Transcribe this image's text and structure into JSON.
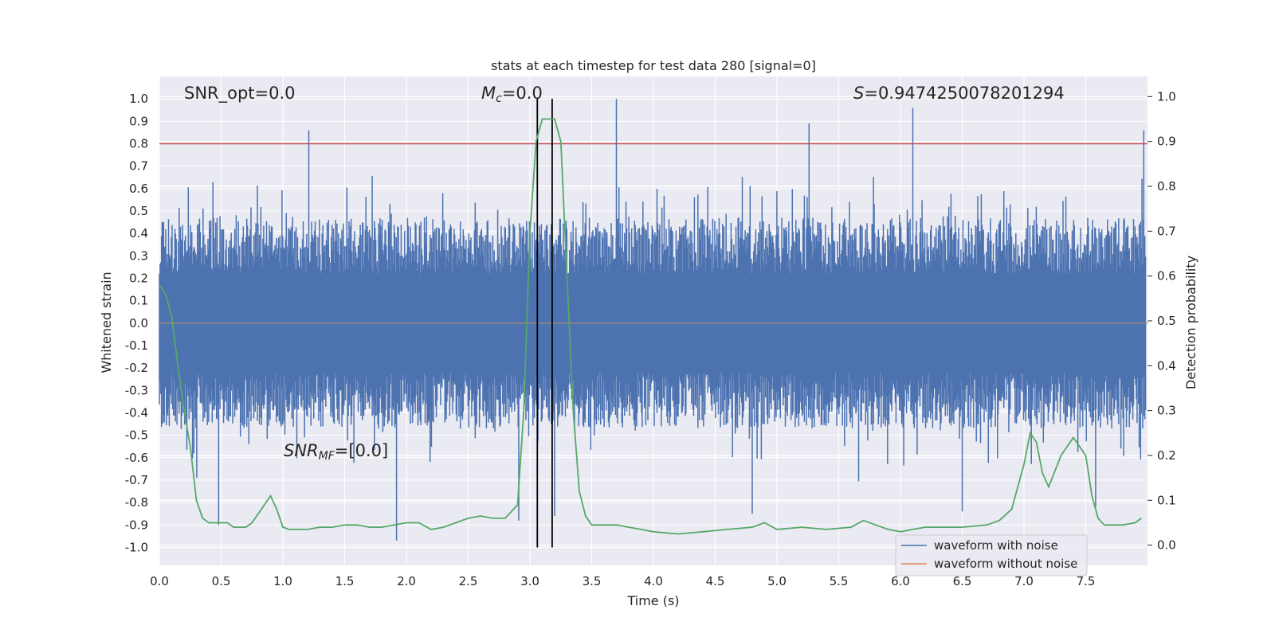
{
  "chart_data": {
    "type": "line",
    "title": "stats at each timestep for test data 280 [signal=0]",
    "xlabel": "Time (s)",
    "ylabel_left": "Whitened strain",
    "ylabel_right": "Detection probability",
    "xlim": [
      0.0,
      8.0
    ],
    "ylim_left": [
      -1.08,
      1.1
    ],
    "ylim_right": [
      -0.045,
      1.045
    ],
    "x_ticks": [
      "0.0",
      "0.5",
      "1.0",
      "1.5",
      "2.0",
      "2.5",
      "3.0",
      "3.5",
      "4.0",
      "4.5",
      "5.0",
      "5.5",
      "6.0",
      "6.5",
      "7.0",
      "7.5"
    ],
    "y_ticks_left": [
      "1.0",
      "0.9",
      "0.8",
      "0.7",
      "0.6",
      "0.5",
      "0.4",
      "0.3",
      "0.2",
      "0.1",
      "0.0",
      "-0.1",
      "-0.2",
      "-0.3",
      "-0.4",
      "-0.5",
      "-0.6",
      "-0.7",
      "-0.8",
      "-0.9",
      "-1.0"
    ],
    "y_ticks_right": [
      "1.0",
      "0.9",
      "0.8",
      "0.7",
      "0.6",
      "0.5",
      "0.4",
      "0.3",
      "0.2",
      "0.1",
      "0.0"
    ],
    "annotations": {
      "snr_opt": "SNR_opt=0.0",
      "mc_symbol": "M",
      "mc_sub": "c",
      "mc_value": "=0.0",
      "s_symbol": "S",
      "s_value": "=0.9474250078201294",
      "snr_mf_symbol": "SNR",
      "snr_mf_sub": "MF",
      "snr_mf_value": "=[0.0]"
    },
    "series": [
      {
        "name": "waveform with noise",
        "color": "#4c72b0",
        "description_values": "dense whitened noise, amplitude typically within ±0.45 with spikes up to ±1.0",
        "noise_band": [
          -0.5,
          0.5
        ],
        "spikes": [
          {
            "x": 1.21,
            "y": 0.86
          },
          {
            "x": 3.7,
            "y": 1.0
          },
          {
            "x": 5.26,
            "y": 0.89
          },
          {
            "x": 6.1,
            "y": 0.96
          },
          {
            "x": 7.97,
            "y": 0.86
          },
          {
            "x": 0.48,
            "y": -0.9
          },
          {
            "x": 1.92,
            "y": -0.97
          },
          {
            "x": 2.91,
            "y": -0.88
          },
          {
            "x": 6.5,
            "y": -0.84
          },
          {
            "x": 7.58,
            "y": -0.82
          },
          {
            "x": 3.2,
            "y": -0.86
          },
          {
            "x": 4.8,
            "y": -0.85
          }
        ]
      },
      {
        "name": "waveform without noise",
        "color": "#dd8452",
        "x": [
          0.0,
          8.0
        ],
        "y": [
          0.0,
          0.0
        ]
      },
      {
        "name": "detection probability",
        "color": "#55a868",
        "axis": "right",
        "x": [
          0.0,
          0.05,
          0.1,
          0.15,
          0.2,
          0.25,
          0.3,
          0.35,
          0.4,
          0.45,
          0.5,
          0.55,
          0.6,
          0.65,
          0.7,
          0.75,
          0.8,
          0.85,
          0.9,
          0.95,
          1.0,
          1.05,
          1.1,
          1.15,
          1.2,
          1.3,
          1.4,
          1.5,
          1.6,
          1.7,
          1.8,
          1.9,
          2.0,
          2.1,
          2.2,
          2.3,
          2.4,
          2.5,
          2.6,
          2.7,
          2.8,
          2.9,
          2.95,
          3.0,
          3.05,
          3.1,
          3.15,
          3.2,
          3.25,
          3.3,
          3.35,
          3.4,
          3.45,
          3.5,
          3.6,
          3.7,
          3.8,
          3.9,
          4.0,
          4.2,
          4.4,
          4.6,
          4.8,
          4.9,
          5.0,
          5.2,
          5.4,
          5.6,
          5.7,
          5.8,
          5.9,
          6.0,
          6.1,
          6.2,
          6.3,
          6.5,
          6.7,
          6.8,
          6.9,
          7.0,
          7.05,
          7.1,
          7.15,
          7.2,
          7.3,
          7.4,
          7.5,
          7.55,
          7.6,
          7.65,
          7.7,
          7.8,
          7.9,
          7.95
        ],
        "y": [
          0.58,
          0.56,
          0.51,
          0.4,
          0.3,
          0.22,
          0.1,
          0.06,
          0.05,
          0.05,
          0.05,
          0.05,
          0.04,
          0.04,
          0.04,
          0.05,
          0.07,
          0.09,
          0.11,
          0.08,
          0.04,
          0.035,
          0.035,
          0.035,
          0.035,
          0.04,
          0.04,
          0.045,
          0.045,
          0.04,
          0.04,
          0.045,
          0.05,
          0.05,
          0.035,
          0.04,
          0.05,
          0.06,
          0.065,
          0.06,
          0.06,
          0.09,
          0.3,
          0.7,
          0.9,
          0.95,
          0.95,
          0.95,
          0.9,
          0.6,
          0.3,
          0.12,
          0.065,
          0.045,
          0.045,
          0.045,
          0.04,
          0.035,
          0.03,
          0.025,
          0.03,
          0.035,
          0.04,
          0.05,
          0.035,
          0.04,
          0.035,
          0.04,
          0.055,
          0.045,
          0.035,
          0.03,
          0.035,
          0.04,
          0.04,
          0.04,
          0.045,
          0.055,
          0.08,
          0.18,
          0.25,
          0.23,
          0.16,
          0.13,
          0.2,
          0.24,
          0.2,
          0.11,
          0.06,
          0.045,
          0.045,
          0.045,
          0.05,
          0.06
        ]
      }
    ],
    "hlines": [
      {
        "y": 0.8,
        "axis": "left",
        "color": "#c44e52"
      },
      {
        "y": 0.0,
        "axis": "left",
        "color": "#888888"
      }
    ],
    "vlines": [
      {
        "x": 3.06,
        "color": "#000000"
      },
      {
        "x": 3.18,
        "color": "#000000"
      }
    ],
    "legend_position": "bottom-right",
    "grid": true
  }
}
